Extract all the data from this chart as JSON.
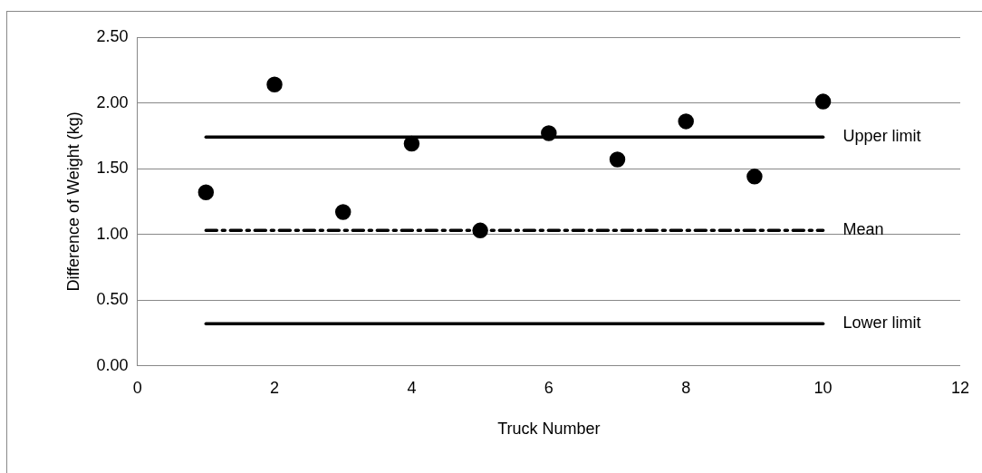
{
  "chart_data": {
    "type": "scatter",
    "xlabel": "Truck Number",
    "ylabel": "Difference of Weight (kg)",
    "xlim": [
      0,
      12
    ],
    "xticks": [
      0,
      2,
      4,
      6,
      8,
      10,
      12
    ],
    "ylim": [
      0,
      2.5
    ],
    "yticks": [
      {
        "value": 0,
        "label": "0.00"
      },
      {
        "value": 0.5,
        "label": "0.50"
      },
      {
        "value": 1,
        "label": "1.00"
      },
      {
        "value": 1.5,
        "label": "1.50"
      },
      {
        "value": 2,
        "label": "2.00"
      },
      {
        "value": 2.5,
        "label": "2.50"
      }
    ],
    "grid": "y",
    "marker": "circle",
    "series": [
      {
        "type": "scatter",
        "color": "#000000",
        "x": [
          1,
          2,
          3,
          4,
          5,
          6,
          7,
          8,
          9,
          10
        ],
        "values": [
          1.32,
          2.14,
          1.17,
          1.69,
          1.03,
          1.77,
          1.57,
          1.86,
          1.44,
          2.01
        ]
      },
      {
        "type": "line",
        "name": "Upper limit",
        "color": "#000000",
        "x": [
          1,
          10
        ],
        "values": [
          1.74,
          1.74
        ],
        "marker": "none",
        "line_style": "solid"
      },
      {
        "type": "line",
        "name": "Mean",
        "color": "#000000",
        "x": [
          1,
          10
        ],
        "values": [
          1.03,
          1.03
        ],
        "marker": "none",
        "line_style": "dashed"
      },
      {
        "type": "line",
        "name": "Lower limit",
        "color": "#000000",
        "x": [
          1,
          10
        ],
        "values": [
          0.32,
          0.32
        ],
        "marker": "none",
        "line_style": "solid"
      }
    ]
  }
}
